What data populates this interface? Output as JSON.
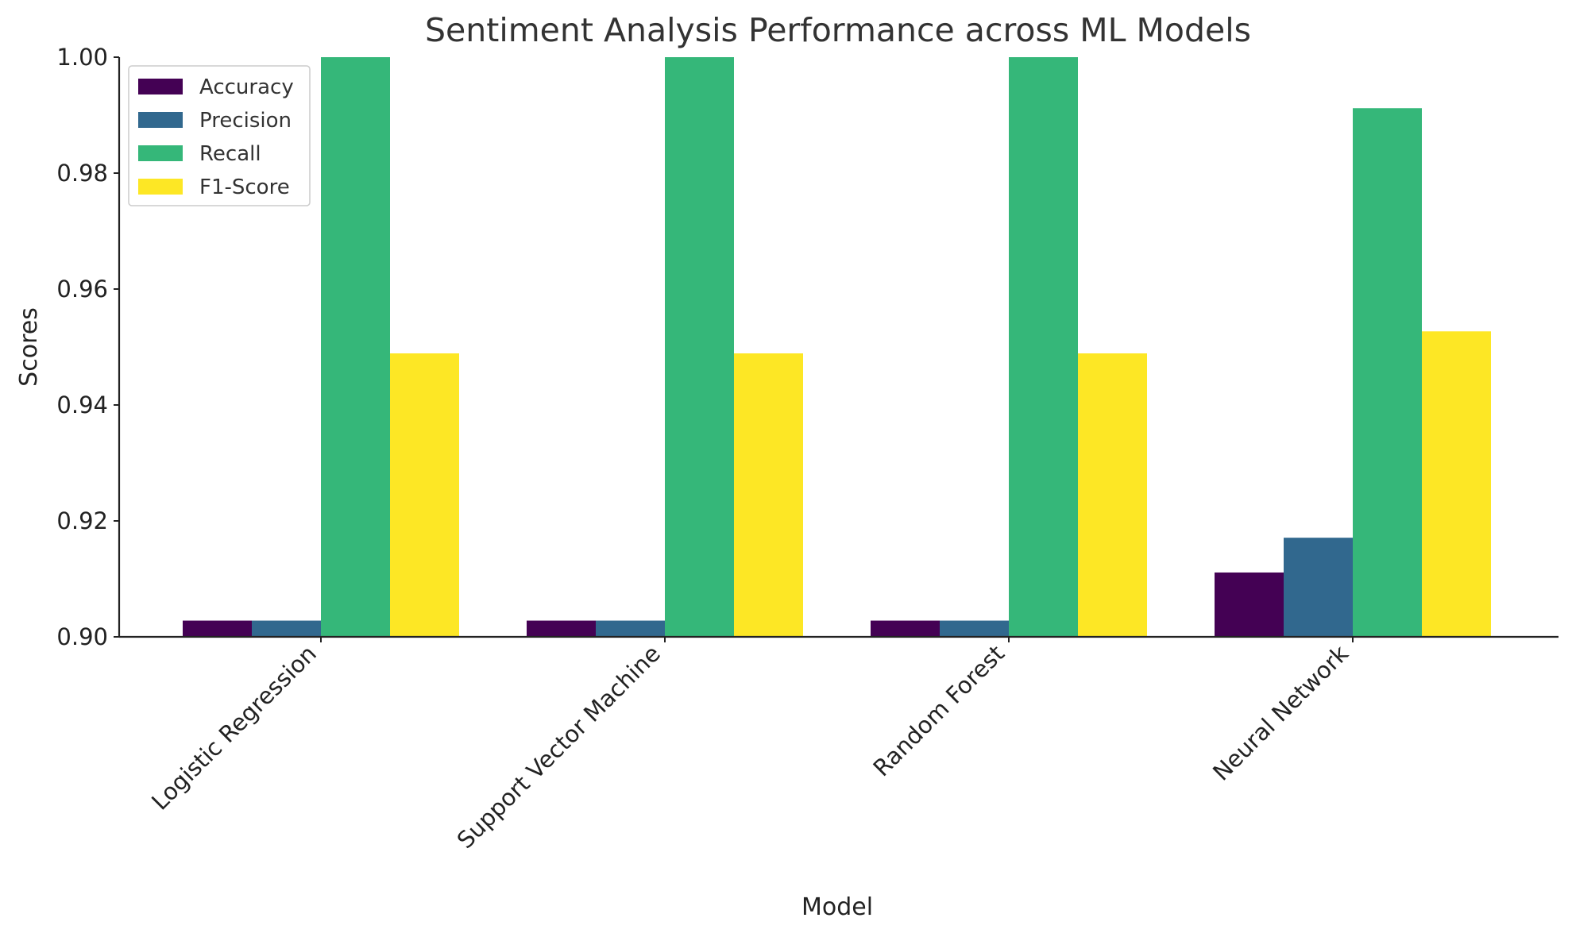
{
  "chart_data": {
    "type": "bar",
    "title": "Sentiment Analysis Performance across ML Models",
    "xlabel": "Model",
    "ylabel": "Scores",
    "categories": [
      "Logistic Regression",
      "Support Vector Machine",
      "Random Forest",
      "Neural Network"
    ],
    "series": [
      {
        "name": "Accuracy",
        "color": "#440154",
        "values": [
          0.9028,
          0.9028,
          0.9028,
          0.9111
        ]
      },
      {
        "name": "Precision",
        "color": "#31688e",
        "values": [
          0.9028,
          0.9028,
          0.9028,
          0.9171
        ]
      },
      {
        "name": "Recall",
        "color": "#35b779",
        "values": [
          1.0,
          1.0,
          1.0,
          0.9912
        ]
      },
      {
        "name": "F1-Score",
        "color": "#fde725",
        "values": [
          0.9489,
          0.9489,
          0.9489,
          0.9527
        ]
      }
    ],
    "ylim": [
      0.9,
      1.0
    ],
    "yticks": [
      "0.90",
      "0.92",
      "0.94",
      "0.96",
      "0.98",
      "1.00"
    ],
    "grid": false,
    "legend_position": "top-left"
  }
}
